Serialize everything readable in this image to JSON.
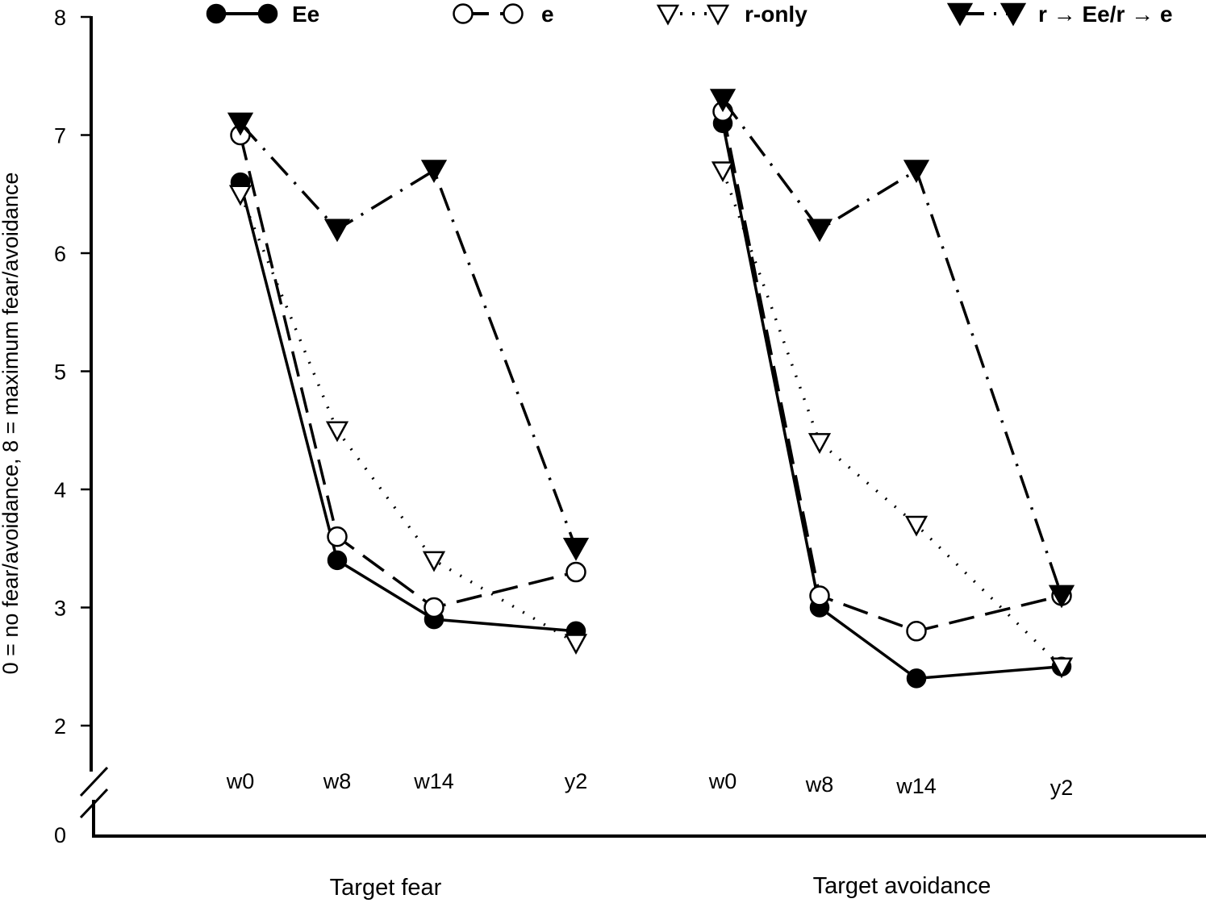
{
  "chart_data": {
    "type": "line",
    "ylabel": "0 = no fear/avoidance, 8 = maximum fear/avoidance",
    "ylim": [
      0,
      8
    ],
    "y_axis_break": true,
    "y_ticks": [
      0,
      2,
      3,
      4,
      5,
      6,
      7,
      8
    ],
    "grid": false,
    "legend_position": "top",
    "categories": [
      "w0",
      "w8",
      "w14",
      "y2"
    ],
    "groups": [
      {
        "title": "Target fear",
        "categories": [
          "w0",
          "w8",
          "w14",
          "y2"
        ],
        "series": [
          {
            "name": "Ee",
            "values": [
              6.6,
              3.4,
              2.9,
              2.8
            ]
          },
          {
            "name": "e",
            "values": [
              7.0,
              3.6,
              3.0,
              3.3
            ]
          },
          {
            "name": "r-only",
            "values": [
              6.5,
              4.5,
              3.4,
              2.7
            ]
          },
          {
            "name": "r → Ee/r → e",
            "values": [
              7.1,
              6.2,
              6.7,
              3.5
            ]
          }
        ]
      },
      {
        "title": "Target avoidance",
        "categories": [
          "w0",
          "w8",
          "w14",
          "y2"
        ],
        "series": [
          {
            "name": "Ee",
            "values": [
              7.1,
              3.0,
              2.4,
              2.5
            ]
          },
          {
            "name": "e",
            "values": [
              7.2,
              3.1,
              2.8,
              3.1
            ]
          },
          {
            "name": "r-only",
            "values": [
              6.7,
              4.4,
              3.7,
              2.5
            ]
          },
          {
            "name": "r → Ee/r → e",
            "values": [
              7.3,
              6.2,
              6.7,
              3.1
            ]
          }
        ]
      }
    ],
    "series_styles": [
      {
        "marker": "filled-circle",
        "line": "solid",
        "color": "#000000"
      },
      {
        "marker": "open-circle",
        "line": "dash",
        "color": "#000000"
      },
      {
        "marker": "open-triangle-down",
        "line": "dot",
        "color": "#000000"
      },
      {
        "marker": "filled-triangle-down",
        "line": "dash-dot",
        "color": "#000000"
      }
    ]
  }
}
